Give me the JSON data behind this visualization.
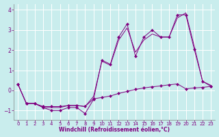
{
  "x": [
    0,
    1,
    2,
    3,
    4,
    5,
    6,
    7,
    8,
    9,
    10,
    11,
    12,
    13,
    14,
    15,
    16,
    17,
    18,
    19,
    20,
    21,
    22,
    23
  ],
  "line1_zigzag": [
    0.3,
    -0.65,
    -0.65,
    -0.85,
    -1.0,
    -1.0,
    -0.85,
    -0.85,
    -1.15,
    -0.45,
    1.5,
    1.3,
    2.65,
    3.3,
    1.7,
    2.65,
    3.0,
    2.65,
    2.65,
    3.75,
    3.75,
    2.05,
    0.45,
    0.2
  ],
  "line2_smooth": [
    0.3,
    -0.65,
    -0.65,
    -0.85,
    -0.85,
    -0.85,
    -0.75,
    -0.75,
    -0.8,
    -0.3,
    1.45,
    1.25,
    2.5,
    3.1,
    1.9,
    2.5,
    2.8,
    2.65,
    2.65,
    3.6,
    3.85,
    2.2,
    0.45,
    0.25
  ],
  "line3_flat": [
    0.3,
    -0.65,
    -0.65,
    -0.8,
    -0.8,
    -0.8,
    -0.75,
    -0.75,
    -0.8,
    -0.42,
    -0.35,
    -0.28,
    -0.15,
    -0.05,
    0.05,
    0.12,
    0.18,
    0.22,
    0.28,
    0.32,
    0.08,
    0.12,
    0.15,
    0.2
  ],
  "bg_color": "#c9eded",
  "grid_color": "#b0d8d8",
  "line_color": "#800080",
  "marker_color": "#800080",
  "xlabel": "Windchill (Refroidissement éolien,°C)",
  "yticks": [
    -1,
    0,
    1,
    2,
    3,
    4
  ],
  "xticks": [
    0,
    1,
    2,
    3,
    4,
    5,
    6,
    7,
    8,
    9,
    10,
    11,
    12,
    13,
    14,
    15,
    16,
    17,
    18,
    19,
    20,
    21,
    22,
    23
  ],
  "ylim": [
    -1.45,
    4.3
  ],
  "xlim": [
    -0.5,
    23.5
  ]
}
